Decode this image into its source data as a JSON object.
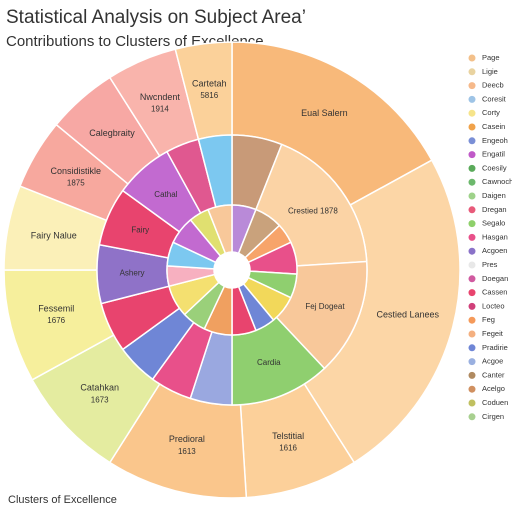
{
  "chart_data": {
    "type": "sunburst",
    "title": "Statistical Analysis on Subject Area’",
    "subtitle": "Contributions to Clusters of Excellence",
    "footer": "Clusters of Excellence",
    "outer": {
      "categories": [
        "Eual Salern",
        "Cestied Lanees",
        "Telstitial",
        "Predioral",
        "Catahkan",
        "Fessemil",
        "Fairy Nalue",
        "Considistikle",
        "Calegbraity",
        "Nwcndent",
        "Cartetah"
      ],
      "codes": [
        null,
        null,
        "1616",
        "1613",
        "1673",
        "1676",
        null,
        "1875",
        null,
        "1914",
        "5816"
      ],
      "values": [
        17,
        24,
        8,
        10,
        8,
        8,
        6,
        5,
        5,
        5,
        4
      ],
      "colors": [
        "#f8b97a",
        "#fcd6a6",
        "#fcd09a",
        "#fac68c",
        "#e4eca0",
        "#f6ef9c",
        "#fbf0b8",
        "#f7a89e",
        "#f7a8a4",
        "#f9b4ac",
        "#fbd19a"
      ]
    },
    "middle": {
      "categories": [
        null,
        "Crestied 1878",
        "Fej Dogeat",
        "Cardia",
        null,
        null,
        null,
        null,
        "Ashery",
        "Fairy",
        "Cathal",
        null,
        null
      ],
      "values": [
        6,
        18,
        14,
        12,
        5,
        5,
        5,
        6,
        7,
        7,
        7,
        4,
        4
      ],
      "colors": [
        "#c89a78",
        "#fbd3a5",
        "#f8c89a",
        "#8fcf6f",
        "#9aa8e0",
        "#e8508a",
        "#6f86d6",
        "#e8446e",
        "#8f72c8",
        "#e8446e",
        "#c26ad0",
        "#e05890",
        "#7cc8f0"
      ]
    },
    "inner": {
      "values": [
        6,
        7,
        5,
        8,
        6,
        7,
        5,
        6,
        7,
        6,
        8,
        5,
        6,
        7,
        5,
        6
      ],
      "colors": [
        "#b98ad8",
        "#c9a27c",
        "#f7a46a",
        "#e8508a",
        "#8fcf6f",
        "#f2d85a",
        "#6f86d6",
        "#e8446e",
        "#f0a060",
        "#9ad07a",
        "#f4e070",
        "#f7b0c0",
        "#7cc8f0",
        "#c26ad0",
        "#e0e070",
        "#f8c89a"
      ]
    },
    "legend": [
      {
        "name": "Page",
        "color": "#f3c08a"
      },
      {
        "name": "Ligie",
        "color": "#e9d3a0"
      },
      {
        "name": "Deecb",
        "color": "#f6b98a"
      },
      {
        "name": "Coresit",
        "color": "#9ec4e6"
      },
      {
        "name": "Corty",
        "color": "#f6e48a"
      },
      {
        "name": "Casein",
        "color": "#f0a24a"
      },
      {
        "name": "Engeoh",
        "color": "#7a8fd6"
      },
      {
        "name": "Engatil",
        "color": "#c05ac8"
      },
      {
        "name": "Coesily",
        "color": "#5aaa5a"
      },
      {
        "name": "Cawnoch",
        "color": "#6cb86c"
      },
      {
        "name": "Daigen",
        "color": "#9ed28a"
      },
      {
        "name": "Dregan",
        "color": "#e85a7a"
      },
      {
        "name": "Segalo",
        "color": "#8ed06a"
      },
      {
        "name": "Hasgan",
        "color": "#e8508a"
      },
      {
        "name": "Acgoen",
        "color": "#8a72c8"
      },
      {
        "name": "Pres",
        "color": "#e8e8e8"
      },
      {
        "name": "Doegan",
        "color": "#d05aa0"
      },
      {
        "name": "Cassen",
        "color": "#e8446e"
      },
      {
        "name": "Locteo",
        "color": "#d0407a"
      },
      {
        "name": "Feg",
        "color": "#f59a5a"
      },
      {
        "name": "Fegeit",
        "color": "#f4b080"
      },
      {
        "name": "Pradirie",
        "color": "#6f86d6"
      },
      {
        "name": "Acgoe",
        "color": "#9ab0e0"
      },
      {
        "name": "Canter",
        "color": "#b08a60"
      },
      {
        "name": "Acelgo",
        "color": "#d09060"
      },
      {
        "name": "Coduen",
        "color": "#c0c060"
      },
      {
        "name": "Cirgen",
        "color": "#a8d090"
      }
    ]
  }
}
